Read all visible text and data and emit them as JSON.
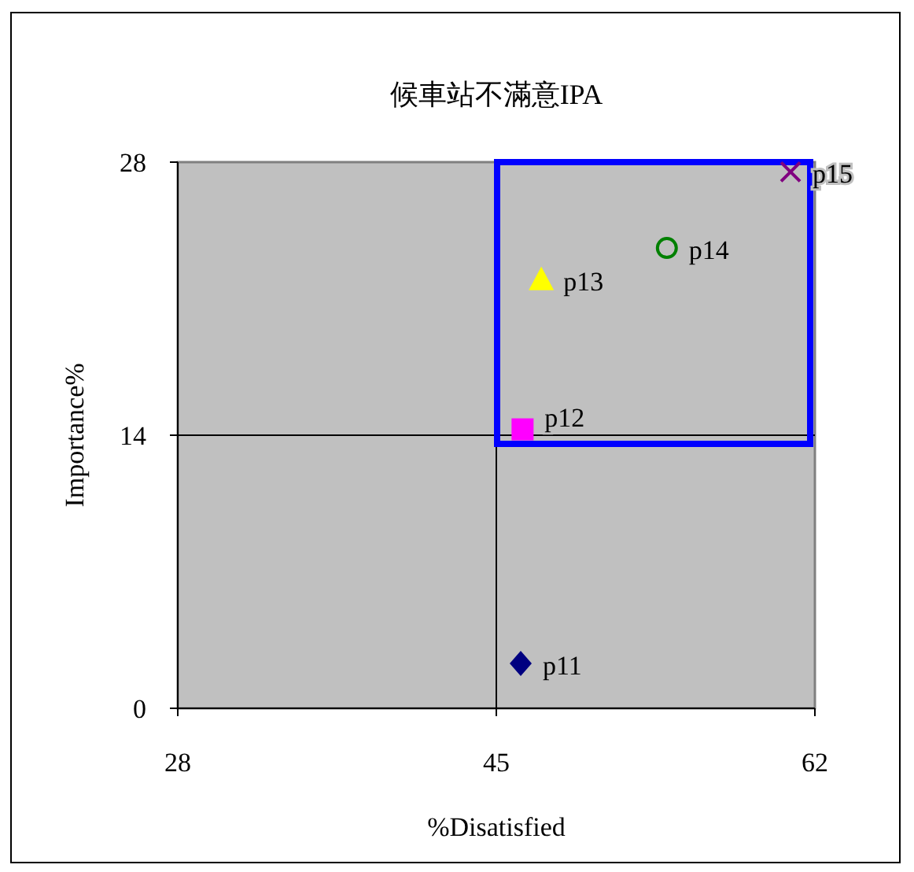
{
  "chart_data": {
    "type": "scatter",
    "title": "候車站不滿意IPA",
    "xlabel": "%Disatisfied",
    "ylabel": "Importance%",
    "xlim": [
      28,
      62
    ],
    "ylim": [
      0,
      28
    ],
    "xticks": [
      28,
      45,
      62
    ],
    "yticks": [
      0,
      14,
      28
    ],
    "grid": false,
    "ref_lines": [
      {
        "axis": "x",
        "value": 45,
        "color": "#000000"
      },
      {
        "axis": "y",
        "value": 14,
        "color": "#000000"
      }
    ],
    "series": [
      {
        "name": "p11",
        "color": "#000080",
        "marker": "diamond",
        "x": [
          46.3
        ],
        "values": [
          2.3
        ]
      },
      {
        "name": "p12",
        "color": "#ff00ff",
        "marker": "square",
        "x": [
          46.4
        ],
        "values": [
          14.3
        ]
      },
      {
        "name": "p13",
        "color": "#ffff00",
        "marker": "triangle",
        "x": [
          47.4
        ],
        "values": [
          22.0
        ]
      },
      {
        "name": "p14",
        "color": "#008000",
        "marker": "circle",
        "x": [
          54.1
        ],
        "values": [
          23.6
        ]
      },
      {
        "name": "p15",
        "color": "#800080",
        "marker": "cross",
        "x": [
          60.7
        ],
        "values": [
          27.5
        ]
      }
    ]
  }
}
